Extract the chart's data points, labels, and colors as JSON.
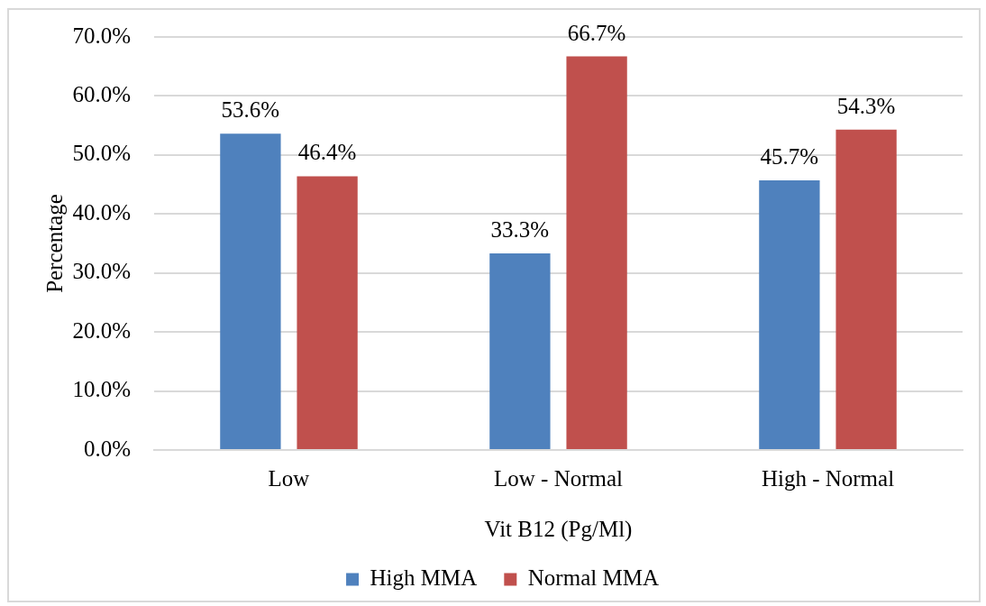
{
  "chart_data": {
    "type": "bar",
    "xlabel": "Vit B12 (Pg/Ml)",
    "ylabel": "Percentage",
    "categories": [
      "Low",
      "Low - Normal",
      "High - Normal"
    ],
    "series": [
      {
        "name": "High MMA",
        "color": "#4f81bd",
        "values": [
          53.6,
          33.3,
          45.7
        ],
        "value_labels": [
          "53.6%",
          "33.3%",
          "45.7%"
        ]
      },
      {
        "name": "Normal MMA",
        "color": "#c0504d",
        "values": [
          46.4,
          66.7,
          54.3
        ],
        "value_labels": [
          "46.4%",
          "66.7%",
          "54.3%"
        ]
      }
    ],
    "ylim": [
      0,
      70
    ],
    "yticks": [
      {
        "value": 0,
        "label": "0.0%"
      },
      {
        "value": 10,
        "label": "10.0%"
      },
      {
        "value": 20,
        "label": "20.0%"
      },
      {
        "value": 30,
        "label": "30.0%"
      },
      {
        "value": 40,
        "label": "40.0%"
      },
      {
        "value": 50,
        "label": "50.0%"
      },
      {
        "value": 60,
        "label": "60.0%"
      },
      {
        "value": 70,
        "label": "70.0%"
      }
    ],
    "grid": "y",
    "legend": "bottom"
  }
}
